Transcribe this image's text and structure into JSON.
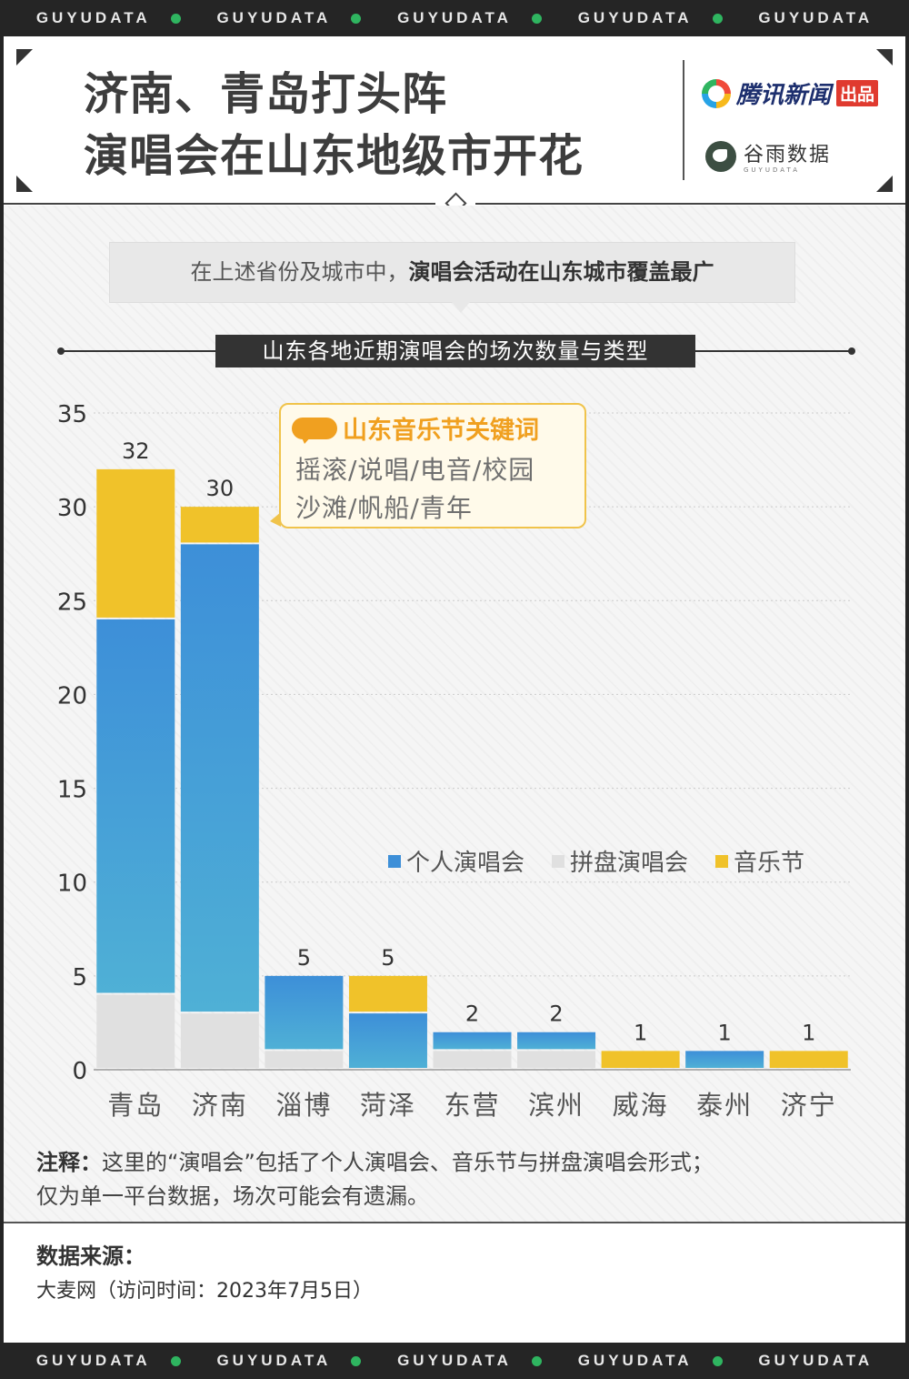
{
  "band": {
    "word": "GUYUDATA",
    "repeat": 5
  },
  "header": {
    "title_lines": [
      "济南、青岛打头阵",
      "演唱会在山东地级市开花"
    ],
    "brand1": {
      "name": "腾讯新闻",
      "tag": "出品"
    },
    "brand2": {
      "name": "谷雨数据",
      "sub": "GUYUDATA"
    }
  },
  "callout": {
    "lead": "在上述省份及城市中，",
    "bold": "演唱会活动在山东城市覆盖最广"
  },
  "keyword_box": {
    "title": "山东音乐节关键词",
    "line1": "摇滚/说唱/电音/校园",
    "line2": "沙滩/帆船/青年"
  },
  "colors": {
    "individual_top": "#3d8fd8",
    "individual_bottom": "#4fb0d6",
    "group": "#e0e0e0",
    "festival": "#f0c22a",
    "text": "#333333",
    "grid": "#cccccc"
  },
  "chart_data": {
    "type": "bar",
    "stacked": true,
    "title": "山东各地近期演唱会的场次数量与类型",
    "categories": [
      "青岛",
      "济南",
      "淄博",
      "菏泽",
      "东营",
      "滨州",
      "威海",
      "泰州",
      "济宁"
    ],
    "series": [
      {
        "name": "拼盘演唱会",
        "color": "#e0e0e0",
        "values": [
          4,
          3,
          1,
          0,
          1,
          1,
          0,
          0,
          0
        ]
      },
      {
        "name": "个人演唱会",
        "color": "#3d8fd8",
        "values": [
          20,
          25,
          4,
          3,
          1,
          1,
          0,
          1,
          0
        ]
      },
      {
        "name": "音乐节",
        "color": "#f0c22a",
        "values": [
          8,
          2,
          0,
          2,
          0,
          0,
          1,
          0,
          1
        ]
      }
    ],
    "totals": [
      32,
      30,
      5,
      5,
      2,
      2,
      1,
      1,
      1
    ],
    "legend_order": [
      "个人演唱会",
      "拼盘演唱会",
      "音乐节"
    ],
    "yticks": [
      0,
      5,
      10,
      15,
      20,
      25,
      30,
      35
    ],
    "ylim": [
      0,
      35
    ],
    "grid": true,
    "legend_position": "middle-right"
  },
  "note": {
    "label": "注释：",
    "line1": "这里的“演唱会”包括了个人演唱会、音乐节与拼盘演唱会形式；",
    "line2": "仅为单一平台数据，场次可能会有遗漏。"
  },
  "source": {
    "title": "数据来源：",
    "text": "大麦网（访问时间：2023年7月5日）"
  }
}
